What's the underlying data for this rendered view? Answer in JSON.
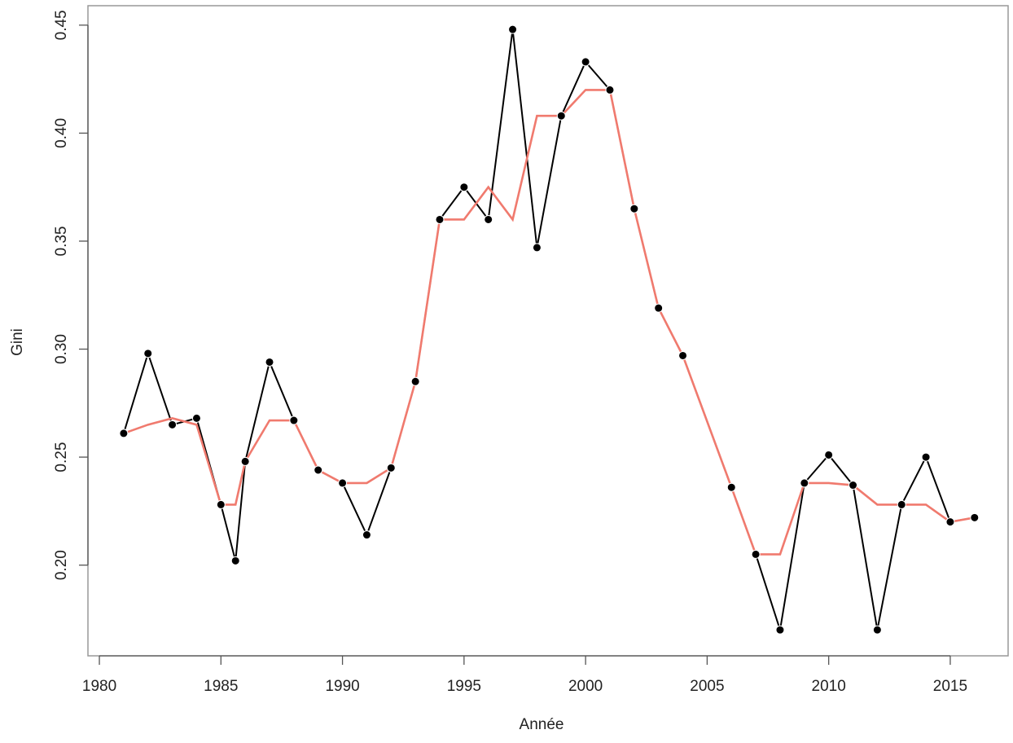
{
  "chart_data": {
    "type": "line",
    "x_label": "Année",
    "y_label": "Gini",
    "x": [
      1981,
      1982,
      1983,
      1984,
      1985,
      1985.6,
      1986,
      1987,
      1988,
      1989,
      1990,
      1991,
      1992,
      1993,
      1994,
      1995,
      1996,
      1997,
      1998,
      1999,
      2000,
      2001,
      2002,
      2003,
      2004,
      2006,
      2007,
      2008,
      2009,
      2010,
      2011,
      2012,
      2013,
      2014,
      2015,
      2016
    ],
    "series": [
      {
        "color": "#000000",
        "markers": true,
        "values": [
          0.261,
          0.298,
          0.265,
          0.268,
          0.228,
          0.202,
          0.248,
          0.294,
          0.267,
          0.244,
          0.238,
          0.214,
          0.245,
          0.285,
          0.36,
          0.375,
          0.36,
          0.448,
          0.347,
          0.408,
          0.433,
          0.42,
          0.365,
          0.319,
          0.297,
          0.236,
          0.205,
          0.17,
          0.238,
          0.251,
          0.237,
          0.17,
          0.228,
          0.25,
          0.22,
          0.222
        ]
      },
      {
        "color": "#f07a6e",
        "markers": false,
        "values": [
          0.261,
          0.265,
          0.268,
          0.265,
          0.228,
          0.228,
          0.248,
          0.267,
          0.267,
          0.244,
          0.238,
          0.238,
          0.245,
          0.285,
          0.36,
          0.36,
          0.375,
          0.36,
          0.408,
          0.408,
          0.42,
          0.42,
          0.365,
          0.319,
          0.297,
          0.236,
          0.205,
          0.205,
          0.238,
          0.238,
          0.237,
          0.228,
          0.228,
          0.228,
          0.22,
          0.222
        ]
      }
    ],
    "xlim": [
      1979.53,
      2017.38
    ],
    "ylim": [
      0.158,
      0.459
    ],
    "xticks": [
      1980,
      1985,
      1990,
      1995,
      2000,
      2005,
      2010,
      2015
    ],
    "yticks": [
      {
        "value": 0.2,
        "label": "0.20"
      },
      {
        "value": 0.25,
        "label": "0.25"
      },
      {
        "value": 0.3,
        "label": "0.30"
      },
      {
        "value": 0.35,
        "label": "0.35"
      },
      {
        "value": 0.4,
        "label": "0.40"
      },
      {
        "value": 0.45,
        "label": "0.45"
      }
    ]
  }
}
